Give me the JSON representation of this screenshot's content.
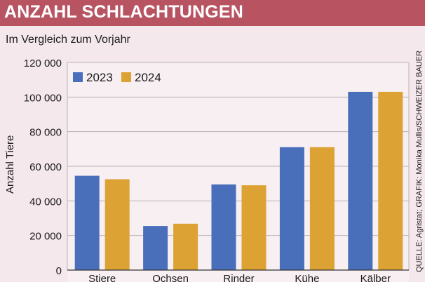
{
  "header": {
    "title": "ANZAHL SCHLACHTUNGEN",
    "subtitle": "Im Vergleich zum Vorjahr"
  },
  "source": "QUELLE: Agristat; GRAFIK: Monika Mullis/SCHWEIZER BAUER",
  "colors": {
    "banner": "#b85462",
    "series_2023": "#4a6fba",
    "series_2024": "#dca233"
  },
  "chart_data": {
    "type": "bar",
    "title": "ANZAHL SCHLACHTUNGEN",
    "subtitle": "Im Vergleich zum Vorjahr",
    "xlabel": "",
    "ylabel": "Anzahl Tiere",
    "ylim": [
      0,
      120000
    ],
    "yticks": [
      0,
      20000,
      40000,
      60000,
      80000,
      100000,
      120000
    ],
    "ytick_labels": [
      "0",
      "20 000",
      "40 000",
      "60 000",
      "80 000",
      "100 000",
      "120 000"
    ],
    "grid": true,
    "legend": "top-left",
    "categories": [
      "Stiere",
      "Ochsen",
      "Rinder",
      "Kühe",
      "Kälber"
    ],
    "series": [
      {
        "name": "2023",
        "values": [
          54500,
          25500,
          49500,
          71000,
          103000
        ]
      },
      {
        "name": "2024",
        "values": [
          52500,
          26800,
          49000,
          71000,
          103000
        ]
      }
    ]
  }
}
